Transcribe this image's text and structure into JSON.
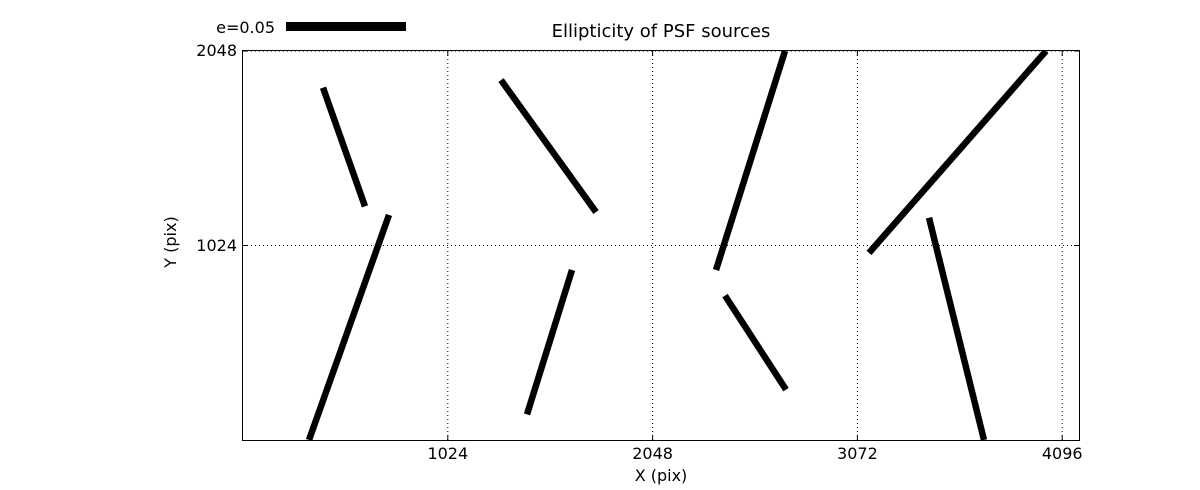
{
  "chart_data": {
    "type": "line",
    "subtype": "ellipticity-whisker-segments",
    "title": "Ellipticity of PSF sources",
    "xlabel": "X (pix)",
    "ylabel": "Y (pix)",
    "xlim": [
      0,
      4180
    ],
    "ylim": [
      0,
      2048
    ],
    "x_ticks": [
      1024,
      2048,
      3072,
      4096
    ],
    "y_ticks": [
      1024,
      2048
    ],
    "grid": "dotted",
    "legend": {
      "label": "e=0.05"
    },
    "color": "#000000",
    "segments": [
      {
        "x1": 400,
        "y1": 1855,
        "x2": 610,
        "y2": 1230
      },
      {
        "x1": 730,
        "y1": 1185,
        "x2": 330,
        "y2": 0
      },
      {
        "x1": 1290,
        "y1": 1895,
        "x2": 1765,
        "y2": 1200
      },
      {
        "x1": 1645,
        "y1": 895,
        "x2": 1420,
        "y2": 135
      },
      {
        "x1": 2710,
        "y1": 2048,
        "x2": 2365,
        "y2": 895
      },
      {
        "x1": 2410,
        "y1": 760,
        "x2": 2715,
        "y2": 265
      },
      {
        "x1": 4015,
        "y1": 2048,
        "x2": 3130,
        "y2": 985
      },
      {
        "x1": 3430,
        "y1": 1170,
        "x2": 3705,
        "y2": 0
      }
    ]
  }
}
